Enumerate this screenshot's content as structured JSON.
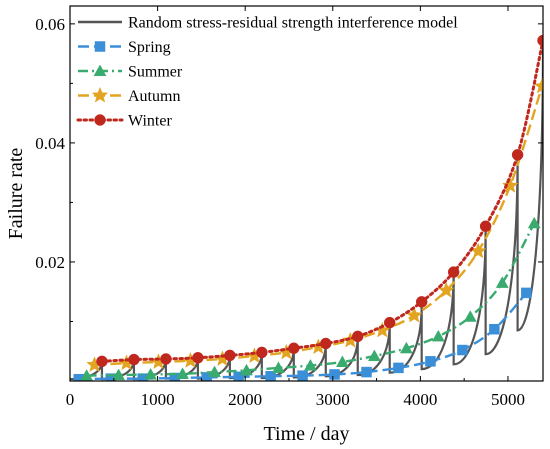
{
  "chart_data": {
    "type": "line",
    "xlabel": "Time / day",
    "ylabel": "Failure rate",
    "xlim": [
      0,
      5400
    ],
    "ylim": [
      0.0,
      0.063
    ],
    "x_ticks": [
      0,
      1000,
      2000,
      3000,
      4000,
      5000
    ],
    "x_tick_labels": [
      "0",
      "1000",
      "2000",
      "3000",
      "4000",
      "5000"
    ],
    "y_ticks": [
      0.02,
      0.04,
      0.06
    ],
    "y_tick_labels": [
      "0.02",
      "0.04",
      "0.06"
    ],
    "legend_position": "top-left",
    "series": [
      {
        "name": "Random stress-residual strength interference model",
        "color": "#555555",
        "style": "solid",
        "marker": "none",
        "sawtooth": {
          "period": 365,
          "peaks_x": [
            365,
            730,
            1095,
            1460,
            1825,
            2190,
            2555,
            2920,
            3285,
            3650,
            4015,
            4380,
            4745,
            5110,
            5400
          ],
          "peaks_y": [
            0.0033,
            0.0036,
            0.0037,
            0.0039,
            0.0043,
            0.0048,
            0.0055,
            0.0063,
            0.0075,
            0.0098,
            0.0128,
            0.0185,
            0.0258,
            0.0382,
            0.057
          ],
          "troughs_y": [
            0.0003,
            0.0003,
            0.0003,
            0.0004,
            0.0004,
            0.0005,
            0.0005,
            0.0006,
            0.0008,
            0.001,
            0.0014,
            0.002,
            0.0028,
            0.0045,
            0.0085
          ]
        }
      },
      {
        "name": "Spring",
        "color": "#3a8fd8",
        "style": "dashed",
        "marker": "square",
        "x": [
          100,
          465,
          830,
          1195,
          1560,
          1925,
          2290,
          2655,
          3020,
          3385,
          3750,
          4115,
          4480,
          4845,
          5210
        ],
        "y": [
          0.0003,
          0.0004,
          0.0004,
          0.0005,
          0.0006,
          0.0007,
          0.0008,
          0.0009,
          0.0011,
          0.0015,
          0.0022,
          0.0033,
          0.0052,
          0.0087,
          0.0148
        ]
      },
      {
        "name": "Summer",
        "color": "#3aab6e",
        "style": "dashdot",
        "marker": "triangle",
        "x": [
          190,
          555,
          920,
          1285,
          1650,
          2015,
          2380,
          2745,
          3110,
          3475,
          3840,
          4205,
          4570,
          4935,
          5300
        ],
        "y": [
          0.0009,
          0.001,
          0.0011,
          0.0012,
          0.0015,
          0.0018,
          0.0022,
          0.0026,
          0.0032,
          0.0042,
          0.0055,
          0.0075,
          0.0108,
          0.0165,
          0.0265
        ]
      },
      {
        "name": "Autumn",
        "color": "#e3a421",
        "style": "dashed",
        "marker": "star",
        "x": [
          280,
          645,
          1010,
          1375,
          1740,
          2105,
          2470,
          2835,
          3200,
          3565,
          3930,
          4295,
          4660,
          5025,
          5390
        ],
        "y": [
          0.0027,
          0.003,
          0.0032,
          0.0034,
          0.0037,
          0.0042,
          0.0048,
          0.0057,
          0.0068,
          0.0085,
          0.011,
          0.0152,
          0.0218,
          0.0328,
          0.0495
        ]
      },
      {
        "name": "Winter",
        "color": "#c0281e",
        "style": "dotted",
        "marker": "circle",
        "x": [
          365,
          730,
          1095,
          1460,
          1825,
          2190,
          2555,
          2920,
          3285,
          3650,
          4015,
          4380,
          4745,
          5110,
          5400
        ],
        "y": [
          0.0033,
          0.0036,
          0.0037,
          0.0039,
          0.0043,
          0.0048,
          0.0055,
          0.0063,
          0.0075,
          0.0098,
          0.0133,
          0.0183,
          0.026,
          0.038,
          0.0572
        ]
      }
    ]
  }
}
